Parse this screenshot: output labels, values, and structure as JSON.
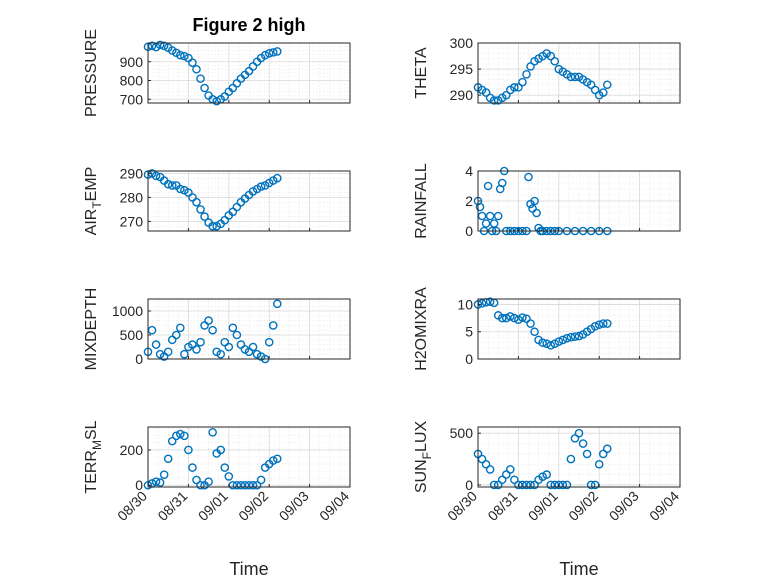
{
  "figure": {
    "title": "Figure 2 high"
  },
  "chart_data": [
    {
      "type": "scatter",
      "ylabel": "PRESSURE",
      "xlabel": "",
      "title": "Figure 2 high",
      "ylim": [
        680,
        1000
      ],
      "yticks": [
        700,
        800,
        900
      ],
      "xlim": [
        0,
        5
      ],
      "xticklabels": [],
      "color": "#0072BD",
      "series": [
        {
          "x": [
            0,
            0.1,
            0.2,
            0.3,
            0.4,
            0.5,
            0.6,
            0.7,
            0.8,
            0.9,
            1.0,
            1.1,
            1.2,
            1.3,
            1.4,
            1.5,
            1.6,
            1.7,
            1.8,
            1.9,
            2.0,
            2.1,
            2.2,
            2.3,
            2.4,
            2.5,
            2.6,
            2.7,
            2.8,
            2.9,
            3.0,
            3.1,
            3.2
          ],
          "y": [
            980,
            985,
            978,
            990,
            985,
            975,
            960,
            948,
            935,
            930,
            920,
            895,
            860,
            810,
            760,
            720,
            700,
            690,
            700,
            715,
            740,
            760,
            785,
            810,
            830,
            850,
            875,
            900,
            920,
            935,
            945,
            950,
            955
          ]
        }
      ]
    },
    {
      "type": "scatter",
      "ylabel": "THETA",
      "xlabel": "",
      "ylim": [
        288.5,
        300
      ],
      "yticks": [
        290,
        295,
        300
      ],
      "xlim": [
        0,
        5
      ],
      "xticklabels": [],
      "color": "#0072BD",
      "series": [
        {
          "x": [
            0,
            0.1,
            0.2,
            0.3,
            0.4,
            0.5,
            0.6,
            0.7,
            0.8,
            0.9,
            1.0,
            1.1,
            1.2,
            1.3,
            1.4,
            1.5,
            1.6,
            1.7,
            1.8,
            1.9,
            2.0,
            2.1,
            2.2,
            2.3,
            2.4,
            2.5,
            2.6,
            2.7,
            2.8,
            2.9,
            3.0,
            3.1,
            3.2
          ],
          "y": [
            291.5,
            291.0,
            290.5,
            289.5,
            289.0,
            289.0,
            289.5,
            290.0,
            291.0,
            291.5,
            291.5,
            292.5,
            294.0,
            295.5,
            296.5,
            297.0,
            297.5,
            298.0,
            297.5,
            296.5,
            295.0,
            294.5,
            294.0,
            293.5,
            293.5,
            293.5,
            293.0,
            292.5,
            292.0,
            291.0,
            290.0,
            290.5,
            292.0
          ]
        }
      ]
    },
    {
      "type": "scatter",
      "ylabel": "AIR_TEMP",
      "ylabel_parts": [
        "AIR",
        "T",
        "EMP"
      ],
      "xlabel": "",
      "ylim": [
        266,
        291
      ],
      "yticks": [
        270,
        280,
        290
      ],
      "xlim": [
        0,
        5
      ],
      "xticklabels": [],
      "color": "#0072BD",
      "series": [
        {
          "x": [
            0,
            0.1,
            0.2,
            0.3,
            0.4,
            0.5,
            0.6,
            0.7,
            0.8,
            0.9,
            1.0,
            1.1,
            1.2,
            1.3,
            1.4,
            1.5,
            1.6,
            1.7,
            1.8,
            1.9,
            2.0,
            2.1,
            2.2,
            2.3,
            2.4,
            2.5,
            2.6,
            2.7,
            2.8,
            2.9,
            3.0,
            3.1,
            3.2
          ],
          "y": [
            289.5,
            290.0,
            289.0,
            288.5,
            287.0,
            285.5,
            285.0,
            285.0,
            283.5,
            283.0,
            282.0,
            280.0,
            278.0,
            275.0,
            272.0,
            269.5,
            268.0,
            268.0,
            269.0,
            270.5,
            272.5,
            274.0,
            276.0,
            278.0,
            279.5,
            281.0,
            282.5,
            283.5,
            284.5,
            285.0,
            286.0,
            287.0,
            288.0
          ]
        }
      ]
    },
    {
      "type": "scatter",
      "ylabel": "RAINFALL",
      "xlabel": "",
      "ylim": [
        0,
        4
      ],
      "yticks": [
        0,
        2,
        4
      ],
      "xlim": [
        0,
        5
      ],
      "xticklabels": [],
      "color": "#0072BD",
      "series": [
        {
          "x": [
            0,
            0.05,
            0.1,
            0.15,
            0.2,
            0.25,
            0.3,
            0.35,
            0.4,
            0.45,
            0.5,
            0.55,
            0.6,
            0.65,
            0.7,
            0.8,
            0.9,
            1.0,
            1.1,
            1.2,
            1.25,
            1.3,
            1.35,
            1.4,
            1.45,
            1.5,
            1.55,
            1.6,
            1.7,
            1.8,
            1.9,
            2.0,
            2.2,
            2.4,
            2.6,
            2.8,
            3.0,
            3.2
          ],
          "y": [
            2.0,
            1.6,
            1.0,
            0.0,
            0.5,
            3.0,
            1.0,
            0.0,
            0.5,
            0.0,
            1.0,
            2.8,
            3.2,
            4.0,
            0.0,
            0.0,
            0.0,
            0.0,
            0.0,
            0.0,
            3.6,
            1.8,
            1.5,
            2.0,
            1.2,
            0.2,
            0.0,
            0.0,
            0.0,
            0.0,
            0.0,
            0.0,
            0.0,
            0.0,
            0.0,
            0.0,
            0.0,
            0.0
          ]
        }
      ]
    },
    {
      "type": "scatter",
      "ylabel": "MIXDEPTH",
      "xlabel": "",
      "ylim": [
        0,
        1250
      ],
      "yticks": [
        0,
        500,
        1000
      ],
      "xlim": [
        0,
        5
      ],
      "xticklabels": [],
      "color": "#0072BD",
      "series": [
        {
          "x": [
            0,
            0.1,
            0.2,
            0.3,
            0.4,
            0.5,
            0.6,
            0.7,
            0.8,
            0.9,
            1.0,
            1.1,
            1.2,
            1.3,
            1.4,
            1.5,
            1.6,
            1.7,
            1.8,
            1.9,
            2.0,
            2.1,
            2.2,
            2.3,
            2.4,
            2.5,
            2.6,
            2.7,
            2.8,
            2.9,
            3.0,
            3.1,
            3.2
          ],
          "y": [
            150,
            600,
            300,
            100,
            50,
            150,
            400,
            500,
            650,
            100,
            250,
            300,
            200,
            350,
            700,
            800,
            600,
            150,
            100,
            350,
            250,
            650,
            500,
            300,
            200,
            150,
            250,
            100,
            50,
            0,
            350,
            700,
            1150
          ]
        }
      ]
    },
    {
      "type": "scatter",
      "ylabel": "H2OMIXRA",
      "xlabel": "",
      "ylim": [
        0,
        11
      ],
      "yticks": [
        0,
        5,
        10
      ],
      "xlim": [
        0,
        5
      ],
      "xticklabels": [],
      "color": "#0072BD",
      "series": [
        {
          "x": [
            0,
            0.1,
            0.2,
            0.3,
            0.4,
            0.5,
            0.6,
            0.7,
            0.8,
            0.9,
            1.0,
            1.1,
            1.2,
            1.3,
            1.4,
            1.5,
            1.6,
            1.7,
            1.8,
            1.9,
            2.0,
            2.1,
            2.2,
            2.3,
            2.4,
            2.5,
            2.6,
            2.7,
            2.8,
            2.9,
            3.0,
            3.1,
            3.2
          ],
          "y": [
            10.0,
            10.2,
            10.4,
            10.5,
            10.3,
            8.0,
            7.5,
            7.5,
            7.8,
            7.5,
            7.2,
            7.6,
            7.4,
            6.5,
            5.0,
            3.5,
            3.0,
            2.8,
            2.5,
            2.8,
            3.2,
            3.5,
            3.8,
            4.0,
            4.1,
            4.2,
            4.5,
            5.0,
            5.5,
            6.0,
            6.3,
            6.5,
            6.5
          ]
        }
      ]
    },
    {
      "type": "scatter",
      "ylabel": "TERR_MSL",
      "ylabel_parts": [
        "TERR",
        "M",
        "SL"
      ],
      "xlabel": "Time",
      "ylim": [
        -10,
        330
      ],
      "yticks": [
        0,
        200
      ],
      "xlim": [
        0,
        5
      ],
      "xticklabels": [
        "08/30",
        "08/31",
        "09/01",
        "09/02",
        "09/03",
        "09/04"
      ],
      "color": "#0072BD",
      "series": [
        {
          "x": [
            0,
            0.1,
            0.2,
            0.3,
            0.4,
            0.5,
            0.6,
            0.7,
            0.8,
            0.9,
            1.0,
            1.1,
            1.2,
            1.3,
            1.4,
            1.5,
            1.6,
            1.7,
            1.8,
            1.9,
            2.0,
            2.1,
            2.2,
            2.3,
            2.4,
            2.5,
            2.6,
            2.7,
            2.8,
            2.9,
            3.0,
            3.1,
            3.2
          ],
          "y": [
            0,
            10,
            20,
            15,
            60,
            150,
            250,
            280,
            290,
            280,
            200,
            100,
            30,
            0,
            0,
            20,
            300,
            180,
            200,
            100,
            50,
            0,
            0,
            0,
            0,
            0,
            0,
            0,
            30,
            100,
            120,
            140,
            150
          ]
        }
      ]
    },
    {
      "type": "scatter",
      "ylabel": "SUN_FLUX",
      "ylabel_parts": [
        "SUN",
        "F",
        "LUX"
      ],
      "xlabel": "Time",
      "ylim": [
        -20,
        560
      ],
      "yticks": [
        0,
        500
      ],
      "xlim": [
        0,
        5
      ],
      "xticklabels": [
        "08/30",
        "08/31",
        "09/01",
        "09/02",
        "09/03",
        "09/04"
      ],
      "color": "#0072BD",
      "series": [
        {
          "x": [
            0,
            0.1,
            0.2,
            0.3,
            0.4,
            0.5,
            0.6,
            0.7,
            0.8,
            0.9,
            1.0,
            1.1,
            1.2,
            1.3,
            1.4,
            1.5,
            1.6,
            1.7,
            1.8,
            1.9,
            2.0,
            2.1,
            2.2,
            2.3,
            2.4,
            2.5,
            2.6,
            2.7,
            2.8,
            2.9,
            3.0,
            3.1,
            3.2
          ],
          "y": [
            300,
            250,
            200,
            150,
            0,
            0,
            50,
            100,
            150,
            50,
            0,
            0,
            0,
            0,
            0,
            50,
            80,
            100,
            0,
            0,
            0,
            0,
            0,
            250,
            450,
            500,
            400,
            300,
            0,
            0,
            200,
            300,
            350
          ]
        }
      ]
    }
  ]
}
